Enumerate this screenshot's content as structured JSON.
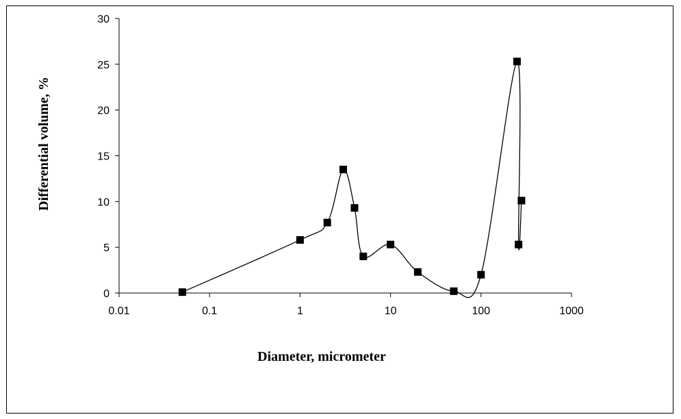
{
  "chart_data": {
    "type": "scatter",
    "title": "",
    "xlabel": "Diameter, micrometer",
    "ylabel": "Differential volume, %",
    "x_scale": "log",
    "xlim": [
      0.01,
      1000
    ],
    "ylim": [
      0,
      30
    ],
    "x_ticks": [
      0.01,
      0.1,
      1,
      10,
      100,
      1000
    ],
    "x_tick_labels": [
      "0.01",
      "0.1",
      "1",
      "10",
      "100",
      "1000"
    ],
    "y_ticks": [
      0,
      5,
      10,
      15,
      20,
      25,
      30
    ],
    "y_tick_labels": [
      "0",
      "5",
      "10",
      "15",
      "20",
      "25",
      "30"
    ],
    "grid": false,
    "legend": "none",
    "marker": "square",
    "line": "smoothed",
    "colors": {
      "series": "#000000"
    },
    "series": [
      {
        "points": [
          {
            "x": 0.05,
            "y": 0.1
          },
          {
            "x": 1,
            "y": 5.8
          },
          {
            "x": 2,
            "y": 7.7
          },
          {
            "x": 3,
            "y": 13.5
          },
          {
            "x": 4,
            "y": 9.3
          },
          {
            "x": 5,
            "y": 4.0
          },
          {
            "x": 10,
            "y": 5.3
          },
          {
            "x": 20,
            "y": 2.3
          },
          {
            "x": 50,
            "y": 0.2
          },
          {
            "x": 100,
            "y": 2.0
          },
          {
            "x": 250,
            "y": 25.3
          },
          {
            "x": 260,
            "y": 5.3
          },
          {
            "x": 280,
            "y": 10.1
          }
        ]
      }
    ]
  }
}
